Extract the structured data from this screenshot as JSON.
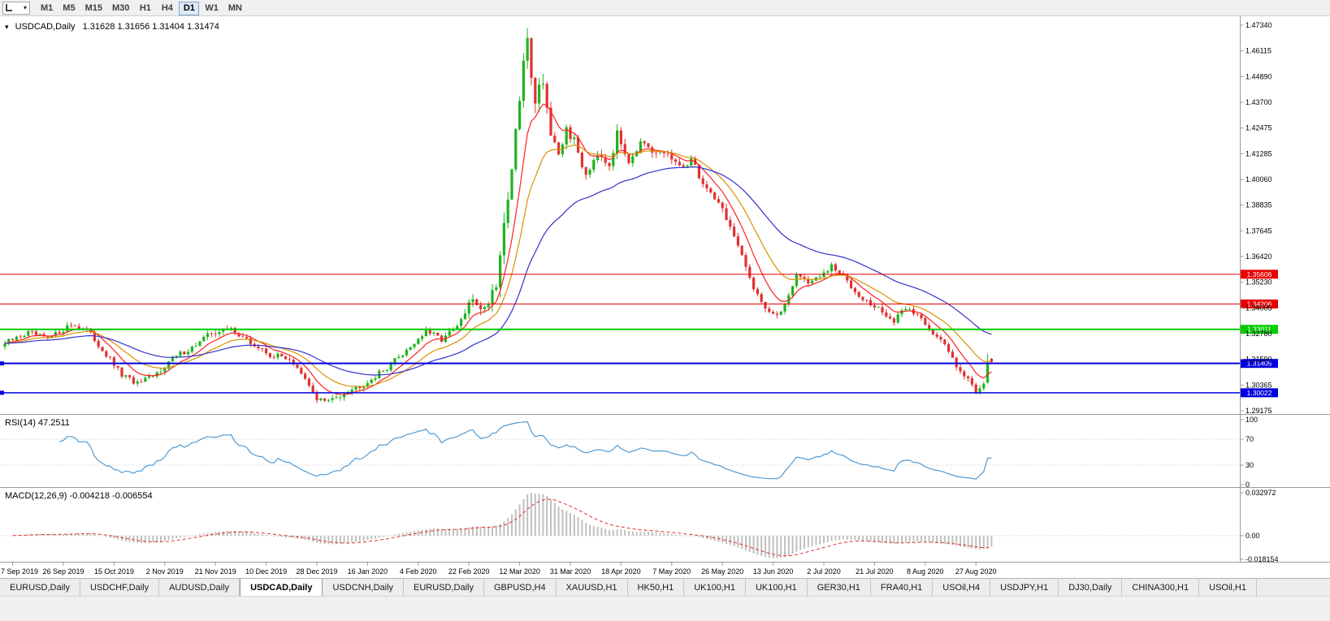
{
  "toolbar": {
    "timeframes": [
      "M1",
      "M5",
      "M15",
      "M30",
      "H1",
      "H4",
      "D1",
      "W1",
      "MN"
    ],
    "active_timeframe": "D1"
  },
  "chart": {
    "title": "USDCAD,Daily",
    "quote_line": "1.31628 1.31656 1.31404 1.31474",
    "rsi_label": "RSI(14) 47.2511",
    "macd_label": "MACD(12,26,9) -0.004218 -0.006554"
  },
  "chart_data": {
    "type": "candlestick",
    "symbol": "USDCAD",
    "period": "Daily",
    "ohlc": {
      "open": 1.31628,
      "high": 1.31656,
      "low": 1.31404,
      "close": 1.31474
    },
    "price_top": 1.4734,
    "price_bottom": 1.29175,
    "y_ticks": [
      "1.47340",
      "1.46115",
      "1.44890",
      "1.43700",
      "1.42475",
      "1.41285",
      "1.40060",
      "1.38835",
      "1.37645",
      "1.36420",
      "1.35230",
      "1.34005",
      "1.32780",
      "1.31590",
      "1.30365",
      "1.29175"
    ],
    "x_labels": [
      "7 Sep 2019",
      "26 Sep 2019",
      "15 Oct 2019",
      "2 Nov 2019",
      "21 Nov 2019",
      "10 Dec 2019",
      "28 Dec 2019",
      "16 Jan 2020",
      "4 Feb 2020",
      "22 Feb 2020",
      "12 Mar 2020",
      "31 Mar 2020",
      "18 Apr 2020",
      "7 May 2020",
      "26 May 2020",
      "13 Jun 2020",
      "2 Jul 2020",
      "21 Jul 2020",
      "8 Aug 2020",
      "27 Aug 2020"
    ],
    "hlines": [
      {
        "value": 1.35606,
        "label": "1.35606",
        "color": "#e80000",
        "width": 1,
        "endpoint": false
      },
      {
        "value": 1.34206,
        "label": "1.34206",
        "color": "#e80000",
        "width": 1,
        "endpoint": false
      },
      {
        "value": 1.33011,
        "label": "1.33011",
        "color": "#00cc00",
        "width": 2,
        "endpoint": false
      },
      {
        "value": 1.31405,
        "label": "1.31405",
        "color": "#0000e0",
        "width": 2,
        "endpoint": true
      },
      {
        "value": 1.30022,
        "label": "1.30022",
        "color": "#0000e0",
        "width": 1.5,
        "endpoint": true
      }
    ],
    "candles": {
      "count": 254,
      "close_anchors": [
        [
          0,
          1.3235
        ],
        [
          6,
          1.3285
        ],
        [
          11,
          1.3255
        ],
        [
          17,
          1.3325
        ],
        [
          21,
          1.33
        ],
        [
          26,
          1.318
        ],
        [
          30,
          1.3085
        ],
        [
          34,
          1.3045
        ],
        [
          38,
          1.3075
        ],
        [
          43,
          1.3165
        ],
        [
          48,
          1.3215
        ],
        [
          53,
          1.3285
        ],
        [
          58,
          1.3305
        ],
        [
          63,
          1.3235
        ],
        [
          68,
          1.318
        ],
        [
          73,
          1.3165
        ],
        [
          77,
          1.306
        ],
        [
          80,
          1.2975
        ],
        [
          83,
          1.296
        ],
        [
          87,
          1.3005
        ],
        [
          92,
          1.3045
        ],
        [
          97,
          1.3105
        ],
        [
          103,
          1.3205
        ],
        [
          108,
          1.329
        ],
        [
          112,
          1.3255
        ],
        [
          116,
          1.331
        ],
        [
          120,
          1.3445
        ],
        [
          123,
          1.3395
        ],
        [
          126,
          1.353
        ],
        [
          129,
          1.393
        ],
        [
          131,
          1.421
        ],
        [
          133,
          1.456
        ],
        [
          134,
          1.465
        ],
        [
          136,
          1.439
        ],
        [
          138,
          1.449
        ],
        [
          140,
          1.421
        ],
        [
          142,
          1.409
        ],
        [
          144,
          1.4255
        ],
        [
          146,
          1.418
        ],
        [
          149,
          1.4035
        ],
        [
          152,
          1.4145
        ],
        [
          155,
          1.4085
        ],
        [
          157,
          1.4215
        ],
        [
          160,
          1.4105
        ],
        [
          163,
          1.4175
        ],
        [
          166,
          1.4125
        ],
        [
          170,
          1.413
        ],
        [
          173,
          1.4055
        ],
        [
          176,
          1.4105
        ],
        [
          179,
          1.3985
        ],
        [
          183,
          1.3905
        ],
        [
          186,
          1.3785
        ],
        [
          189,
          1.3635
        ],
        [
          192,
          1.3505
        ],
        [
          195,
          1.3405
        ],
        [
          198,
          1.3355
        ],
        [
          200,
          1.3425
        ],
        [
          203,
          1.356
        ],
        [
          206,
          1.3525
        ],
        [
          209,
          1.3545
        ],
        [
          212,
          1.3595
        ],
        [
          215,
          1.355
        ],
        [
          218,
          1.3485
        ],
        [
          222,
          1.3415
        ],
        [
          225,
          1.3385
        ],
        [
          228,
          1.3335
        ],
        [
          231,
          1.3405
        ],
        [
          235,
          1.3355
        ],
        [
          238,
          1.3285
        ],
        [
          241,
          1.3225
        ],
        [
          244,
          1.3135
        ],
        [
          247,
          1.3065
        ],
        [
          249,
          1.301
        ],
        [
          251,
          1.305
        ],
        [
          253,
          1.31474
        ]
      ],
      "volatility_anchors": [
        [
          0,
          0.0028
        ],
        [
          115,
          0.0032
        ],
        [
          122,
          0.006
        ],
        [
          127,
          0.0095
        ],
        [
          140,
          0.0085
        ],
        [
          150,
          0.006
        ],
        [
          165,
          0.0045
        ],
        [
          185,
          0.004
        ],
        [
          210,
          0.003
        ],
        [
          253,
          0.0028
        ]
      ],
      "last_two": [
        {
          "o": 1.305,
          "h": 1.3186,
          "l": 1.3045,
          "c": 1.3145
        },
        {
          "o": 1.31628,
          "h": 1.31656,
          "l": 1.31404,
          "c": 1.31474
        }
      ]
    },
    "moving_averages": [
      {
        "period": 8,
        "color": "#ff2020"
      },
      {
        "period": 17,
        "color": "#d99000"
      },
      {
        "period": 40,
        "color": "#3232cc"
      }
    ],
    "rsi": {
      "period": 14,
      "value": 47.2511,
      "levels": [
        "100",
        "70",
        "30",
        "0"
      ],
      "color": "#4f9bd5"
    },
    "macd": {
      "fast": 12,
      "slow": 26,
      "signal": 9,
      "value": -0.004218,
      "signal_value": -0.006554,
      "axis_max": 0.032972,
      "axis_min": -0.018154,
      "axis_labels": [
        "0.032972",
        "0.00",
        "-0.018154"
      ],
      "histogram_color": "#c0c0c0",
      "signal_color": "#e03030"
    },
    "colors": {
      "bull": "#1fb41f",
      "bear": "#e03232",
      "background": "#ffffff",
      "axis_line": "#9a9a9a",
      "separator": "#9a9a9a",
      "grid_dotted": "#c8c8c8"
    }
  },
  "tabs": {
    "items": [
      "EURUSD,Daily",
      "USDCHF,Daily",
      "AUDUSD,Daily",
      "USDCAD,Daily",
      "USDCNH,Daily",
      "EURUSD,Daily",
      "GBPUSD,H4",
      "XAUUSD,H1",
      "HK50,H1",
      "UK100,H1",
      "UK100,H1",
      "GER30,H1",
      "FRA40,H1",
      "USOil,H4",
      "USDJPY,H1",
      "DJ30,Daily",
      "CHINA300,H1",
      "USOil,H1"
    ],
    "active_index": 3
  }
}
